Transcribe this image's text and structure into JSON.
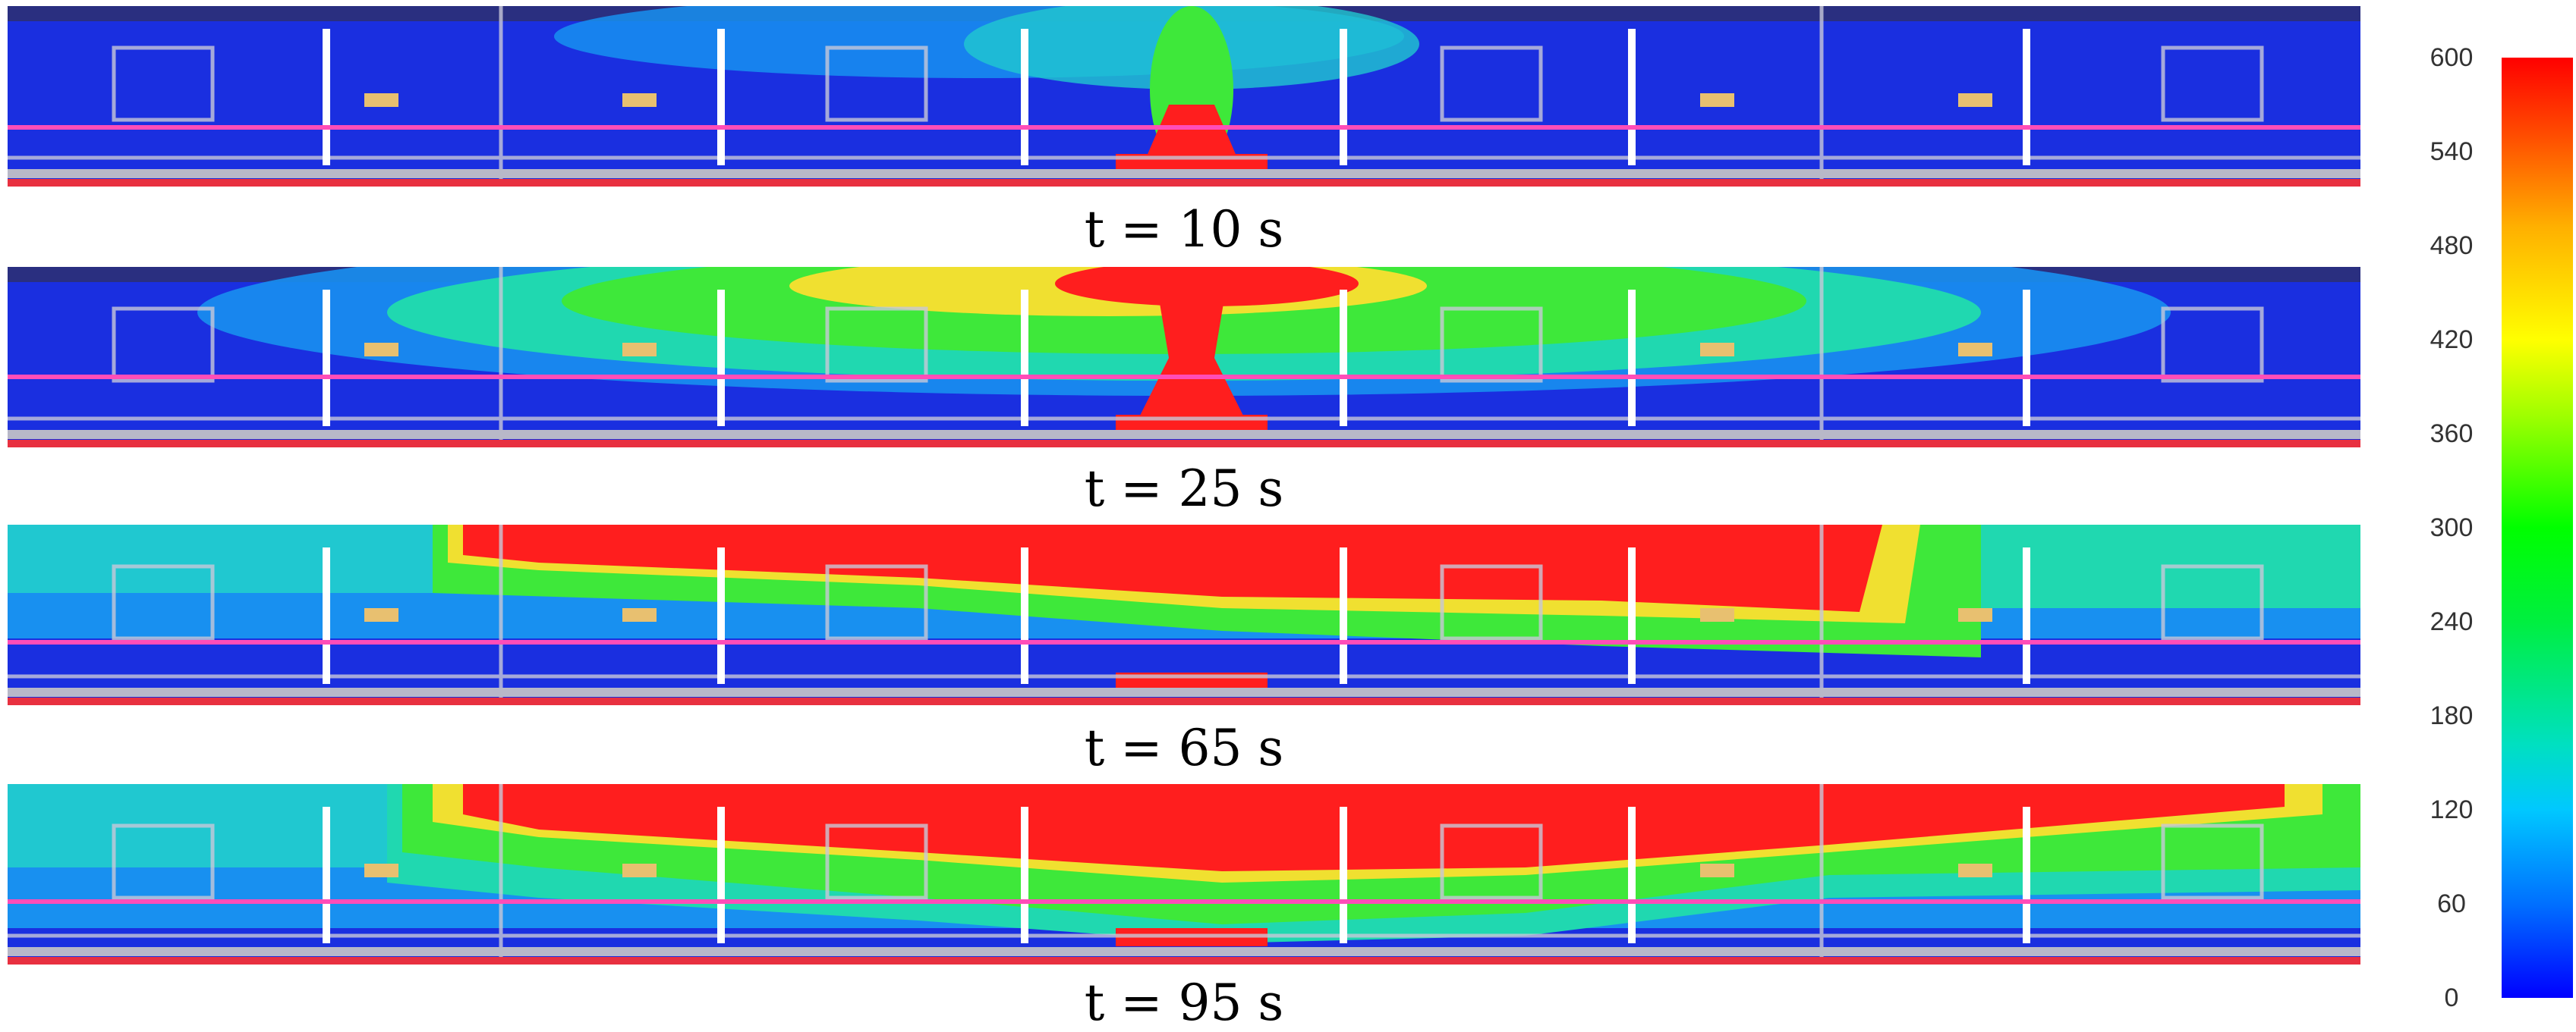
{
  "frames": [
    {
      "label": "t = 10 s"
    },
    {
      "label": "t = 25 s"
    },
    {
      "label": "t = 65 s"
    },
    {
      "label": "t = 95 s"
    }
  ],
  "colorbar": {
    "ticks": [
      "600",
      "540",
      "480",
      "420",
      "360",
      "300",
      "240",
      "180",
      "120",
      "60",
      "0"
    ],
    "min": 0,
    "max": 600,
    "colors": [
      "#0000ff",
      "#00c8ff",
      "#00ff00",
      "#ffff00",
      "#ff0000"
    ]
  },
  "colors": {
    "cold": "#1a2fe0",
    "cool": "#1890f0",
    "mild": "#20d8b0",
    "warm": "#3ee83a",
    "hot_edge": "#f0e030",
    "hot": "#ff1e1e",
    "frame_beige": "#e8c070",
    "seat_pink": "#ff4db8",
    "floor_red": "#e83040"
  }
}
